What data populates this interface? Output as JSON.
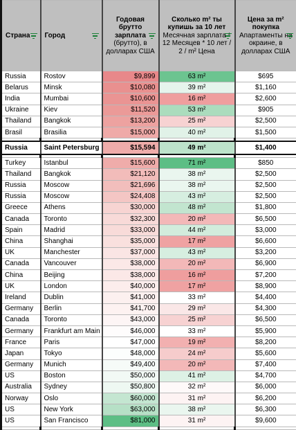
{
  "header": {
    "country": "Страна",
    "city": "Город",
    "salary_title": "Годовая брутто зарплата",
    "salary_sub": "(брутто), в долларах США",
    "sqm_title": "Сколько m² ты купишь за 10 лет",
    "sqm_sub": "Месячная зарплата * 12 Месяцев * 10 лет / 2 / m² Цена",
    "price_title": "Цена за m² покупка",
    "price_sub": "Апартаменты на окраине, в долларах США"
  },
  "colors": {
    "red_strong": "#e99393",
    "red_light": "#f8d8d8",
    "green_strong": "#5dbe85",
    "green_light": "#cfeadb",
    "header_bg": "#bfbfbf",
    "filter_icon": "#1a7f37"
  },
  "groups": [
    {
      "rows": [
        {
          "country": "Russia",
          "city": "Rostov",
          "salary": "$9,899",
          "sqm": "63 m²",
          "price": "$695",
          "salary_bg": "#e8888a",
          "sqm_bg": "#6cc490"
        },
        {
          "country": "Belarus",
          "city": "Minsk",
          "salary": "$10,080",
          "sqm": "39 m²",
          "price": "$1,160",
          "salary_bg": "#e9908f",
          "sqm_bg": "#e6f4ec"
        },
        {
          "country": "India",
          "city": "Mumbai",
          "salary": "$10,600",
          "sqm": "16 m²",
          "price": "$2,600",
          "salary_bg": "#ea9493",
          "sqm_bg": "#ef9e9e"
        },
        {
          "country": "Ukraine",
          "city": "Kiev",
          "salary": "$11,520",
          "sqm": "53 m²",
          "price": "$905",
          "salary_bg": "#eb9a98",
          "sqm_bg": "#abdcbd"
        },
        {
          "country": "Thailand",
          "city": "Bangkok",
          "salary": "$13,200",
          "sqm": "25 m²",
          "price": "$2,500",
          "salary_bg": "#eda2a0",
          "sqm_bg": "#f7d2d2"
        },
        {
          "country": "Brasil",
          "city": "Brasilia",
          "salary": "$15,000",
          "sqm": "40 m²",
          "price": "$1,500",
          "salary_bg": "#efaaa8",
          "sqm_bg": "#e1f2e8"
        }
      ]
    },
    {
      "highlight": true,
      "rows": [
        {
          "country": "Russia",
          "city": "Saint Petersburg",
          "salary": "$15,594",
          "sqm": "49 m²",
          "price": "$1,400",
          "salary_bg": "#efacaa",
          "sqm_bg": "#bde3cb"
        }
      ]
    },
    {
      "rows": [
        {
          "country": "Turkey",
          "city": "Istanbul",
          "salary": "$15,600",
          "sqm": "71 m²",
          "price": "$850",
          "salary_bg": "#efacaa",
          "sqm_bg": "#5dbe85"
        },
        {
          "country": "Thailand",
          "city": "Bangkok",
          "salary": "$21,120",
          "sqm": "38 m²",
          "price": "$2,500",
          "salary_bg": "#f2bcba",
          "sqm_bg": "#eaf6ef"
        },
        {
          "country": "Russia",
          "city": "Moscow",
          "salary": "$21,696",
          "sqm": "38 m²",
          "price": "$2,500",
          "salary_bg": "#f2bebc",
          "sqm_bg": "#eaf6ef"
        },
        {
          "country": "Russia",
          "city": "Moscow",
          "salary": "$24,408",
          "sqm": "43 m²",
          "price": "$2,500",
          "salary_bg": "#f4c6c4",
          "sqm_bg": "#d6eee0"
        },
        {
          "country": "Greece",
          "city": "Athens",
          "salary": "$30,000",
          "sqm": "48 m²",
          "price": "$1,800",
          "salary_bg": "#f7d4d2",
          "sqm_bg": "#c2e5cf"
        },
        {
          "country": "Canada",
          "city": "Toronto",
          "salary": "$32,300",
          "sqm": "20 m²",
          "price": "$6,500",
          "salary_bg": "#f8dad8",
          "sqm_bg": "#f3b8b8"
        },
        {
          "country": "Spain",
          "city": "Madrid",
          "salary": "$33,000",
          "sqm": "44 m²",
          "price": "$3,000",
          "salary_bg": "#f8dbd9",
          "sqm_bg": "#d2ecdc"
        },
        {
          "country": "China",
          "city": "Shanghai",
          "salary": "$35,000",
          "sqm": "17 m²",
          "price": "$6,600",
          "salary_bg": "#f9e0de",
          "sqm_bg": "#efa2a2"
        },
        {
          "country": "UK",
          "city": "Manchester",
          "salary": "$37,000",
          "sqm": "43 m²",
          "price": "$3,200",
          "salary_bg": "#fae5e4",
          "sqm_bg": "#d6eee0"
        },
        {
          "country": "Canada",
          "city": "Vancouver",
          "salary": "$38,000",
          "sqm": "20 m²",
          "price": "$6,900",
          "salary_bg": "#fbe8e7",
          "sqm_bg": "#f3b8b8"
        },
        {
          "country": "China",
          "city": "Beijing",
          "salary": "$38,000",
          "sqm": "16 m²",
          "price": "$7,200",
          "salary_bg": "#fbe8e7",
          "sqm_bg": "#ef9e9e"
        },
        {
          "country": "UK",
          "city": "London",
          "salary": "$40,000",
          "sqm": "17 m²",
          "price": "$8,900",
          "salary_bg": "#fcedec",
          "sqm_bg": "#efa2a2"
        },
        {
          "country": "Ireland",
          "city": "Dublin",
          "salary": "$41,000",
          "sqm": "33 m²",
          "price": "$4,400",
          "salary_bg": "#fcf0ef",
          "sqm_bg": "#ffffff"
        },
        {
          "country": "Germany",
          "city": "Berlin",
          "salary": "$41,700",
          "sqm": "29 m²",
          "price": "$4,300",
          "salary_bg": "#fdf2f1",
          "sqm_bg": "#fae7e7"
        },
        {
          "country": "Canada",
          "city": "Toronto",
          "salary": "$43,000",
          "sqm": "25 m²",
          "price": "$6,500",
          "salary_bg": "#fdf5f5",
          "sqm_bg": "#f7d2d2"
        },
        {
          "country": "Germany",
          "city": "Frankfurt am Main",
          "salary": "$46,000",
          "sqm": "33 m²",
          "price": "$5,900",
          "salary_bg": "#fefcfc",
          "sqm_bg": "#ffffff"
        },
        {
          "country": "France",
          "city": "Paris",
          "salary": "$47,000",
          "sqm": "19 m²",
          "price": "$8,200",
          "salary_bg": "#ffffff",
          "sqm_bg": "#f2b0b0"
        },
        {
          "country": "Japan",
          "city": "Tokyo",
          "salary": "$48,000",
          "sqm": "24 m²",
          "price": "$5,600",
          "salary_bg": "#fcfefd",
          "sqm_bg": "#f6cccc"
        },
        {
          "country": "Germany",
          "city": "Munich",
          "salary": "$49,400",
          "sqm": "20 m²",
          "price": "$7,400",
          "salary_bg": "#f6fbf8",
          "sqm_bg": "#f3b8b8"
        },
        {
          "country": "US",
          "city": "Boston",
          "salary": "$50,000",
          "sqm": "41 m²",
          "price": "$4,700",
          "salary_bg": "#f2f9f5",
          "sqm_bg": "#ddf1e5"
        },
        {
          "country": "Australia",
          "city": "Sydney",
          "salary": "$50,800",
          "sqm": "32 m²",
          "price": "$6,000",
          "salary_bg": "#eef8f2",
          "sqm_bg": "#fef9f9"
        },
        {
          "country": "Norway",
          "city": "Oslo",
          "salary": "$60,000",
          "sqm": "31 m²",
          "price": "$6,200",
          "salary_bg": "#c4e6d1",
          "sqm_bg": "#fdf3f3"
        },
        {
          "country": "US",
          "city": "New York",
          "salary": "$63,000",
          "sqm": "38 m²",
          "price": "$6,300",
          "salary_bg": "#b6e0c6",
          "sqm_bg": "#eaf6ef"
        },
        {
          "country": "US",
          "city": "San Francisco",
          "salary": "$81,000",
          "sqm": "31 m²",
          "price": "$9,600",
          "salary_bg": "#5dbe85",
          "sqm_bg": "#fdf3f3"
        }
      ]
    }
  ]
}
